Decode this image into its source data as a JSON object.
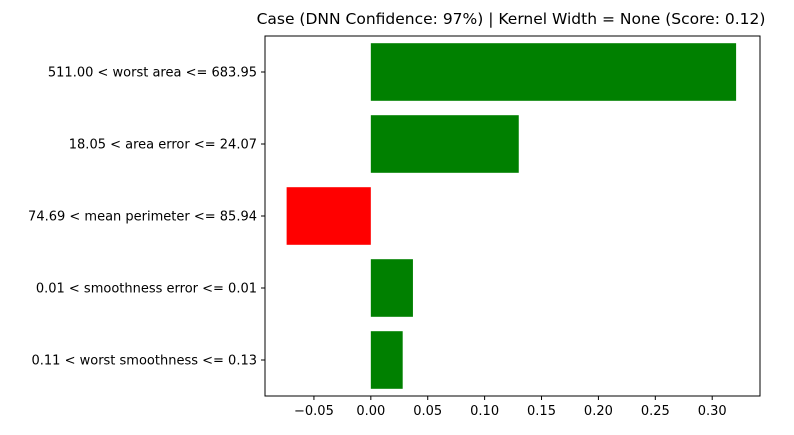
{
  "chart_data": {
    "type": "bar",
    "orientation": "horizontal",
    "title": "Case (DNN Confidence: 97%) | Kernel Width = None (Score: 0.12)",
    "xlabel": "",
    "ylabel": "",
    "categories": [
      "511.00 < worst area <= 683.95",
      "18.05 < area error <= 24.07",
      "74.69 < mean perimeter <= 85.94",
      "0.01 < smoothness error <= 0.01",
      "0.11 < worst smoothness <= 0.13"
    ],
    "values": [
      0.321,
      0.13,
      -0.074,
      0.037,
      0.028
    ],
    "bar_colors": [
      "#008000",
      "#008000",
      "#ff0000",
      "#008000",
      "#008000"
    ],
    "xlim": [
      -0.093,
      0.342
    ],
    "xticks": [
      -0.05,
      0.0,
      0.05,
      0.1,
      0.15,
      0.2,
      0.25,
      0.3
    ],
    "xtick_labels": [
      "−0.05",
      "0.00",
      "0.05",
      "0.10",
      "0.15",
      "0.20",
      "0.25",
      "0.30"
    ],
    "grid": false,
    "legend": "none"
  }
}
